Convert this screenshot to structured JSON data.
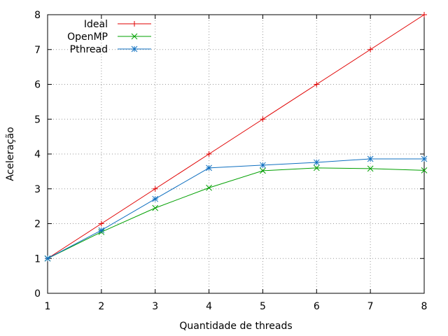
{
  "chart_data": {
    "type": "line",
    "title": "",
    "xlabel": "Quantidade de threads",
    "ylabel": "Aceleração",
    "x": [
      1,
      2,
      3,
      4,
      5,
      6,
      7,
      8
    ],
    "xlim": [
      1,
      8
    ],
    "ylim": [
      0,
      8
    ],
    "xticks": [
      "1",
      "2",
      "3",
      "4",
      "5",
      "6",
      "7",
      "8"
    ],
    "yticks": [
      "0",
      "1",
      "2",
      "3",
      "4",
      "5",
      "6",
      "7",
      "8"
    ],
    "grid": true,
    "legend_position": "top-left",
    "series": [
      {
        "name": "Ideal",
        "color": "#e00000",
        "marker": "plus",
        "values": [
          1,
          2,
          3,
          4,
          5,
          6,
          7,
          8
        ]
      },
      {
        "name": "OpenMP",
        "color": "#00a000",
        "marker": "cross",
        "values": [
          1,
          1.76,
          2.45,
          3.03,
          3.52,
          3.6,
          3.58,
          3.53
        ]
      },
      {
        "name": "Pthread",
        "color": "#1070c0",
        "marker": "asterisk",
        "values": [
          1,
          1.81,
          2.71,
          3.6,
          3.68,
          3.76,
          3.86,
          3.86
        ]
      }
    ]
  }
}
